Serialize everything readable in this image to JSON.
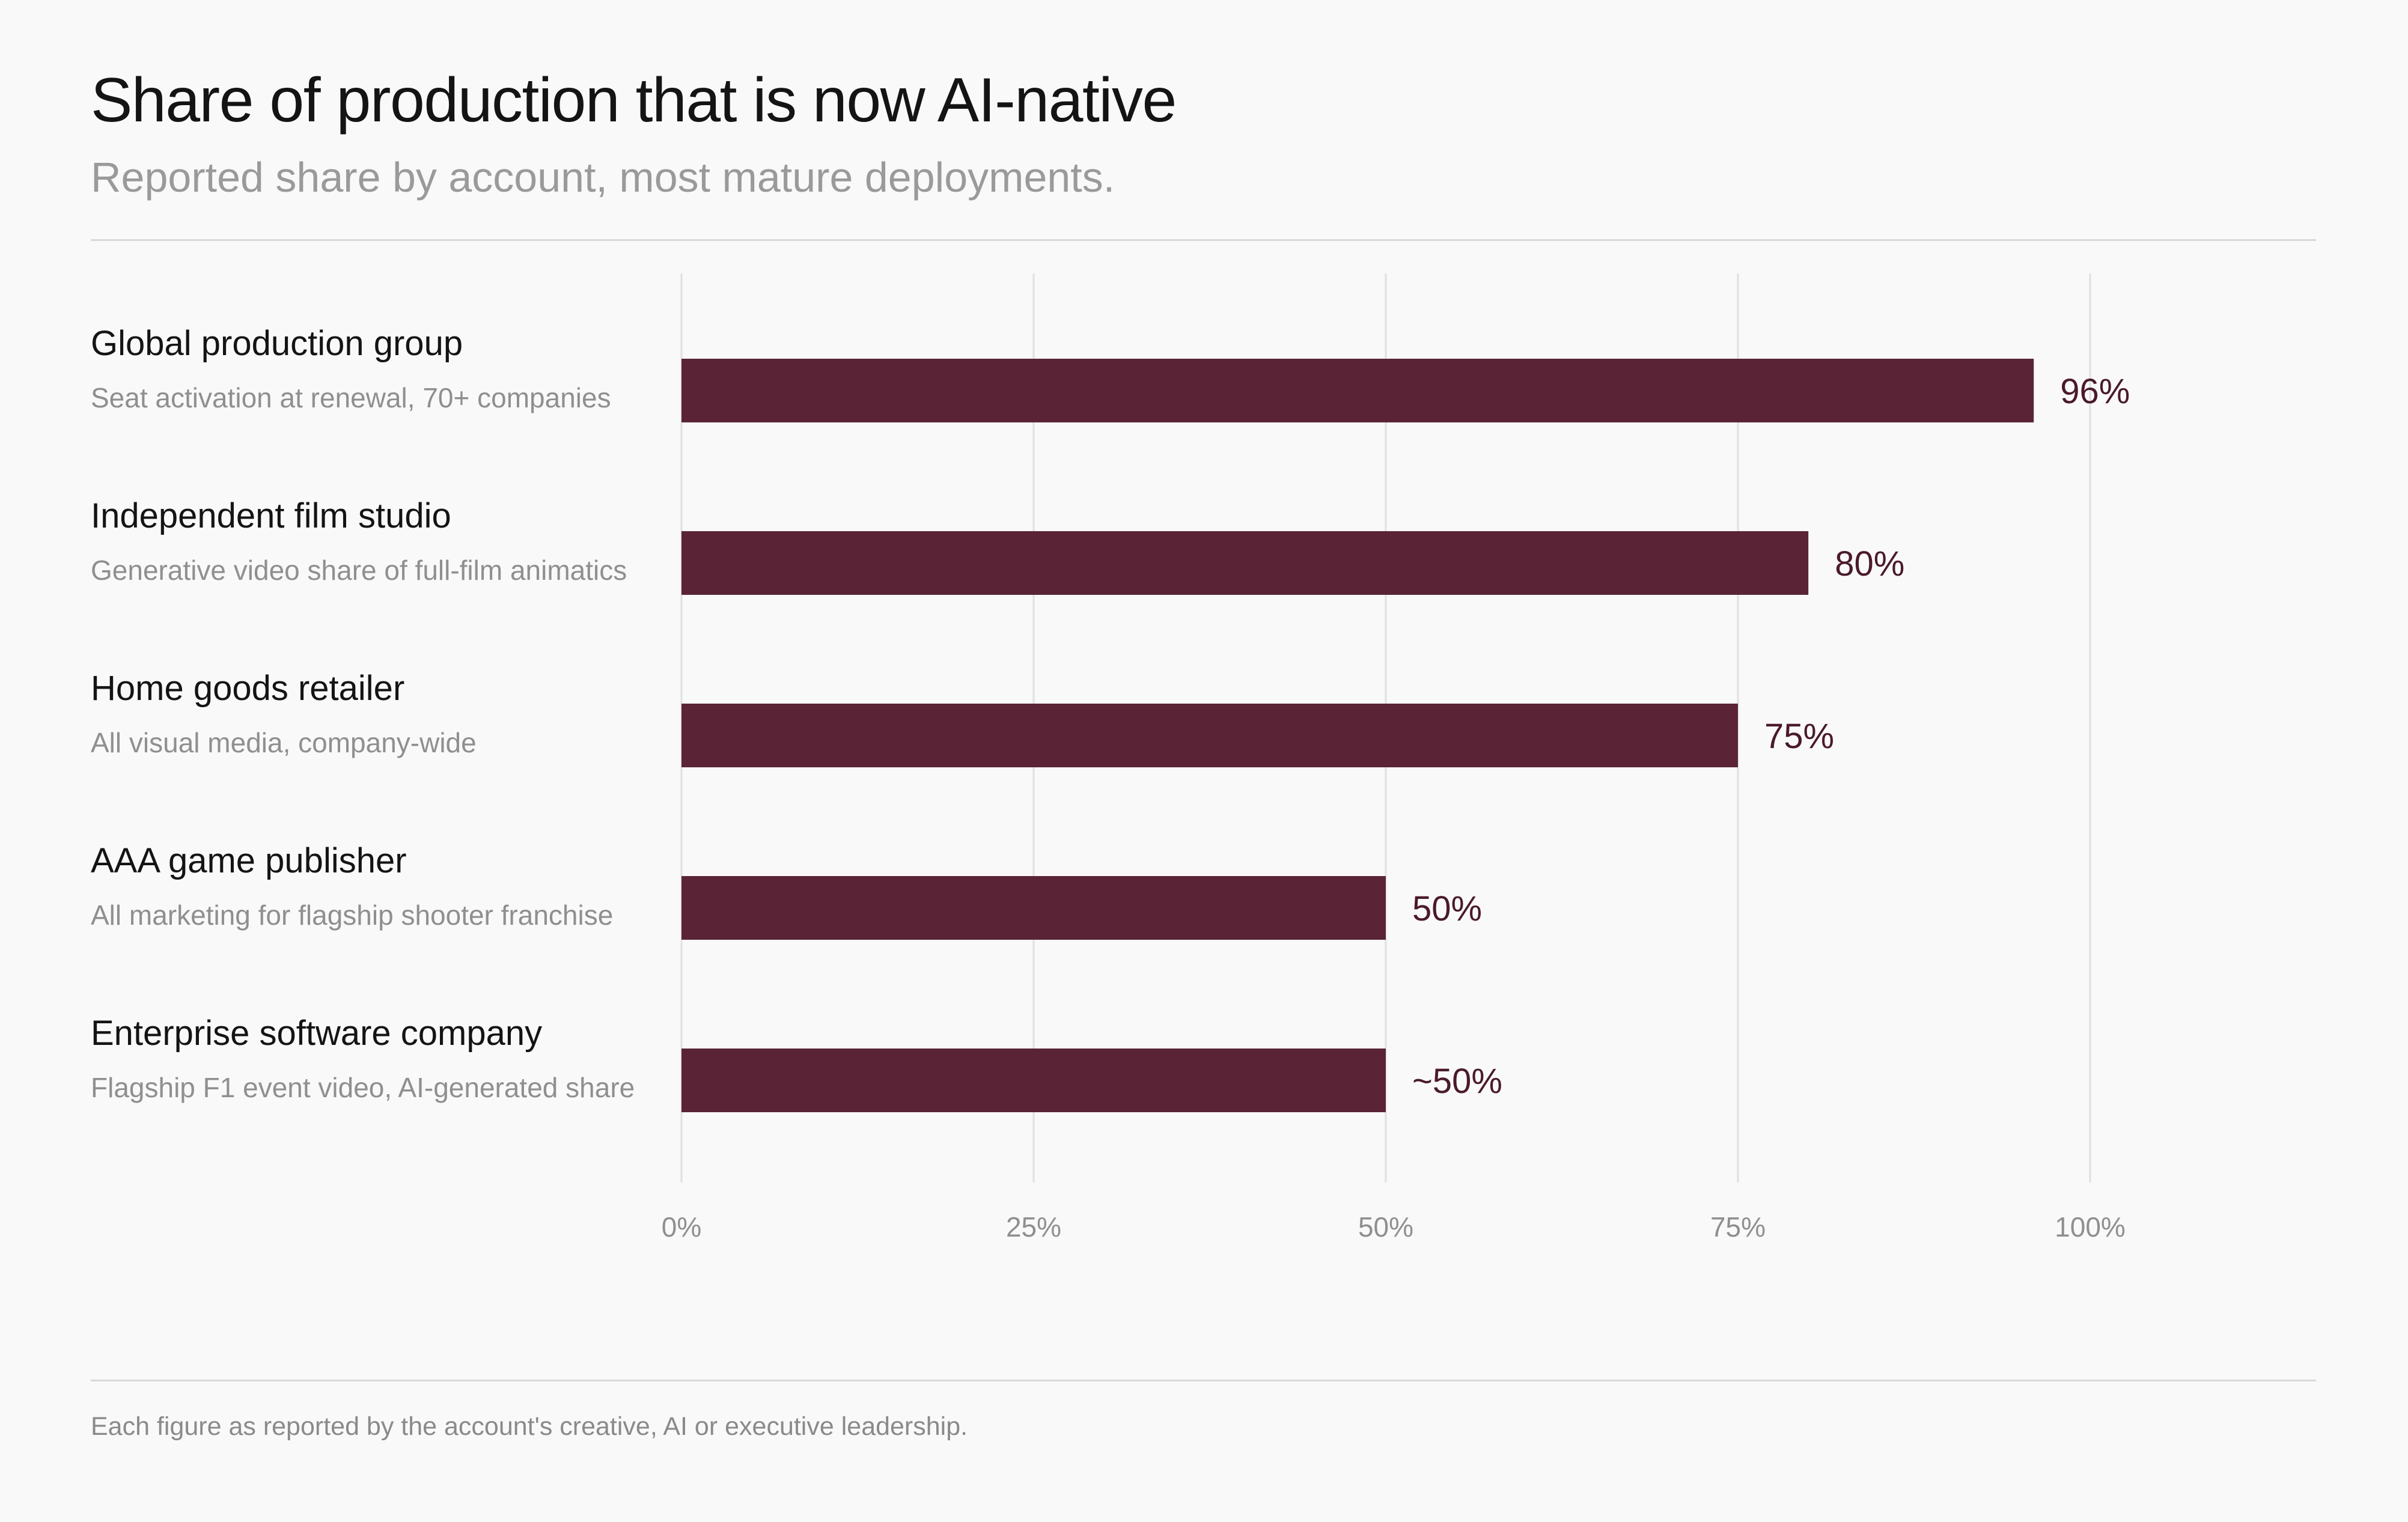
{
  "title": "Share of production that is now AI-native",
  "subtitle": "Reported share by account, most mature deployments.",
  "footnote": "Each figure as reported by the account's creative, AI or executive leadership.",
  "colors": {
    "bar": "#5a2436",
    "value_label": "#4a1a2b",
    "grid": "#e0e0e0",
    "tick_label": "#8f8f8f"
  },
  "chart_data": {
    "type": "bar",
    "orientation": "horizontal",
    "xlim": [
      0,
      100
    ],
    "xticks": [
      0,
      25,
      50,
      75,
      100
    ],
    "xtick_labels": [
      "0%",
      "25%",
      "50%",
      "75%",
      "100%"
    ],
    "grid": true,
    "categories": [
      "Global production group",
      "Independent film studio",
      "Home goods retailer",
      "AAA game publisher",
      "Enterprise software company"
    ],
    "category_descriptions": [
      "Seat activation at renewal, 70+ companies",
      "Generative video share of full-film animatics",
      "All visual media, company-wide",
      "All marketing for flagship shooter franchise",
      "Flagship F1 event video, AI-generated share"
    ],
    "values": [
      96,
      80,
      75,
      50,
      50
    ],
    "value_labels": [
      "96%",
      "80%",
      "75%",
      "50%",
      "~50%"
    ]
  }
}
